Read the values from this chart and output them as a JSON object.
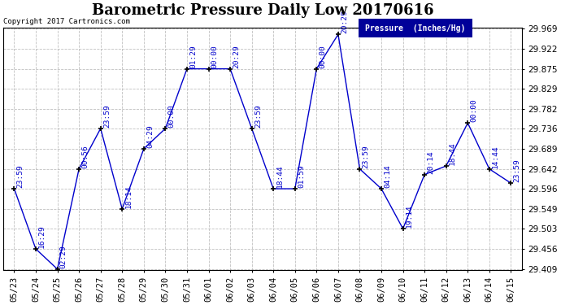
{
  "title": "Barometric Pressure Daily Low 20170616",
  "copyright": "Copyright 2017 Cartronics.com",
  "legend_label": "Pressure  (Inches/Hg)",
  "x_labels": [
    "05/23",
    "05/24",
    "05/25",
    "05/26",
    "05/27",
    "05/28",
    "05/29",
    "05/30",
    "05/31",
    "06/01",
    "06/02",
    "06/03",
    "06/04",
    "06/05",
    "06/06",
    "06/07",
    "06/08",
    "06/09",
    "06/10",
    "06/11",
    "06/12",
    "06/13",
    "06/14",
    "06/15"
  ],
  "y_values": [
    29.596,
    29.456,
    29.409,
    29.642,
    29.736,
    29.549,
    29.689,
    29.736,
    29.875,
    29.875,
    29.875,
    29.736,
    29.596,
    29.596,
    29.875,
    29.955,
    29.642,
    29.596,
    29.503,
    29.629,
    29.649,
    29.749,
    29.642,
    29.609
  ],
  "time_labels": [
    "23:59",
    "16:29",
    "02:29",
    "00:56",
    "23:59",
    "18:14",
    "04:29",
    "00:00",
    "01:29",
    "00:00",
    "20:29",
    "23:59",
    "18:44",
    "01:59",
    "00:00",
    "20:29",
    "23:59",
    "04:14",
    "19:14",
    "20:14",
    "18:44",
    "00:00",
    "14:44",
    "23:59"
  ],
  "ylim_min": 29.409,
  "ylim_max": 29.969,
  "yticks": [
    29.969,
    29.922,
    29.875,
    29.829,
    29.782,
    29.736,
    29.689,
    29.642,
    29.596,
    29.549,
    29.503,
    29.456,
    29.409
  ],
  "line_color": "#0000CC",
  "marker_color": "#000000",
  "background_color": "#ffffff",
  "grid_color": "#b0b0b0",
  "title_fontsize": 13,
  "tick_fontsize": 7.5,
  "legend_bg": "#000099",
  "legend_text_color": "#ffffff",
  "annotation_fontsize": 6.8
}
